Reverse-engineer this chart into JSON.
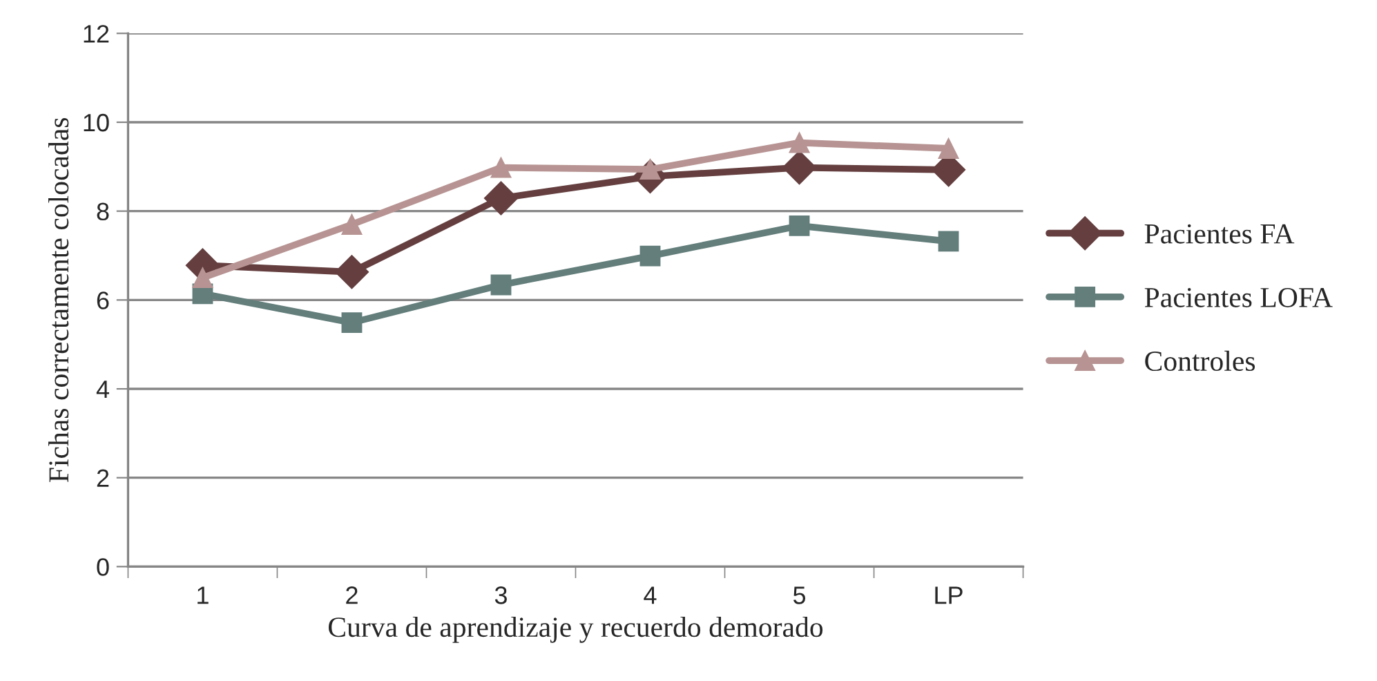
{
  "chart_data": {
    "type": "line",
    "xlabel": "Curva de aprendizaje y recuerdo demorado",
    "ylabel": "Fichas correctamente colocadas",
    "categories": [
      "1",
      "2",
      "3",
      "4",
      "5",
      "LP"
    ],
    "series": [
      {
        "name": "Pacientes FA",
        "color": "#653f40",
        "marker": "diamond",
        "values": [
          6.78,
          6.63,
          8.29,
          8.78,
          8.98,
          8.93
        ]
      },
      {
        "name": "Pacientes LOFA",
        "color": "#637e7b",
        "marker": "square",
        "values": [
          6.14,
          5.49,
          6.34,
          6.99,
          7.67,
          7.32
        ]
      },
      {
        "name": "Controles",
        "color": "#b79493",
        "marker": "triangle",
        "values": [
          6.5,
          7.7,
          8.98,
          8.94,
          9.54,
          9.41
        ]
      }
    ],
    "ylim": [
      0,
      12
    ],
    "yticks": [
      0,
      2,
      4,
      6,
      8,
      10,
      12
    ],
    "grid": "y",
    "legend": "right",
    "line_style": "solid"
  }
}
